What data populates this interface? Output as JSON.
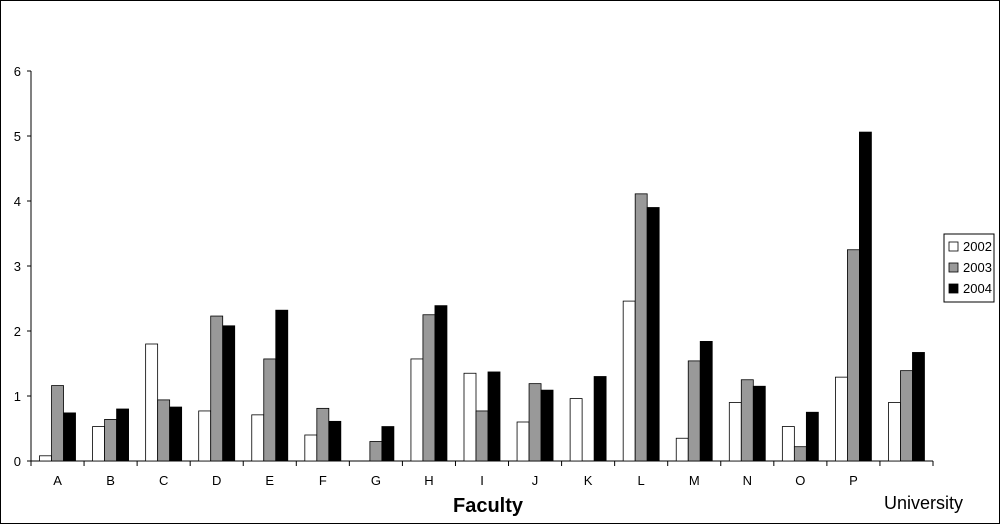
{
  "chart_data": {
    "type": "bar",
    "title": "",
    "xlabel": "Faculty",
    "ylabel": "",
    "ylim": [
      0,
      6
    ],
    "yticks": [
      0,
      1,
      2,
      3,
      4,
      5,
      6
    ],
    "grid": false,
    "legend_position": "right",
    "categories": [
      "A",
      "B",
      "C",
      "D",
      "E",
      "F",
      "G",
      "H",
      "I",
      "J",
      "K",
      "L",
      "M",
      "N",
      "O",
      "P",
      "University"
    ],
    "series": [
      {
        "name": "2002",
        "color": "#ffffff",
        "values": [
          0.08,
          0.53,
          1.8,
          0.77,
          0.71,
          0.4,
          null,
          1.57,
          1.35,
          0.6,
          0.96,
          2.46,
          0.35,
          0.9,
          0.53,
          1.29,
          0.9
        ]
      },
      {
        "name": "2003",
        "color": "#999999",
        "values": [
          1.16,
          0.64,
          0.94,
          2.23,
          1.57,
          0.81,
          0.3,
          2.25,
          0.77,
          1.19,
          null,
          4.11,
          1.54,
          1.25,
          0.22,
          3.25,
          1.39
        ]
      },
      {
        "name": "2004",
        "color": "#000000",
        "values": [
          0.74,
          0.8,
          0.83,
          2.08,
          2.32,
          0.61,
          0.53,
          2.39,
          1.37,
          1.09,
          1.3,
          3.9,
          1.84,
          1.15,
          0.75,
          5.06,
          1.67
        ]
      }
    ]
  }
}
